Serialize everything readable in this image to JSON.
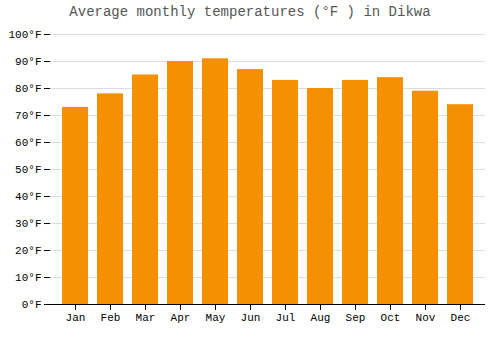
{
  "chart_data": {
    "type": "bar",
    "title": "Average monthly temperatures (°F ) in Dikwa",
    "categories": [
      "Jan",
      "Feb",
      "Mar",
      "Apr",
      "May",
      "Jun",
      "Jul",
      "Aug",
      "Sep",
      "Oct",
      "Nov",
      "Dec"
    ],
    "values": [
      73,
      78,
      85,
      90,
      91,
      87,
      83,
      80,
      83,
      84,
      79,
      74
    ],
    "color": "#F59000",
    "ylim": [
      0,
      100
    ],
    "yticks": [
      {
        "value": 0,
        "label": "0°F"
      },
      {
        "value": 10,
        "label": "10°F"
      },
      {
        "value": 20,
        "label": "20°F"
      },
      {
        "value": 30,
        "label": "30°F"
      },
      {
        "value": 40,
        "label": "40°F"
      },
      {
        "value": 50,
        "label": "50°F"
      },
      {
        "value": 60,
        "label": "60°F"
      },
      {
        "value": 70,
        "label": "70°F"
      },
      {
        "value": 80,
        "label": "80°F"
      },
      {
        "value": 90,
        "label": "90°F"
      },
      {
        "value": 100,
        "label": "100°F"
      }
    ],
    "grid": true
  }
}
